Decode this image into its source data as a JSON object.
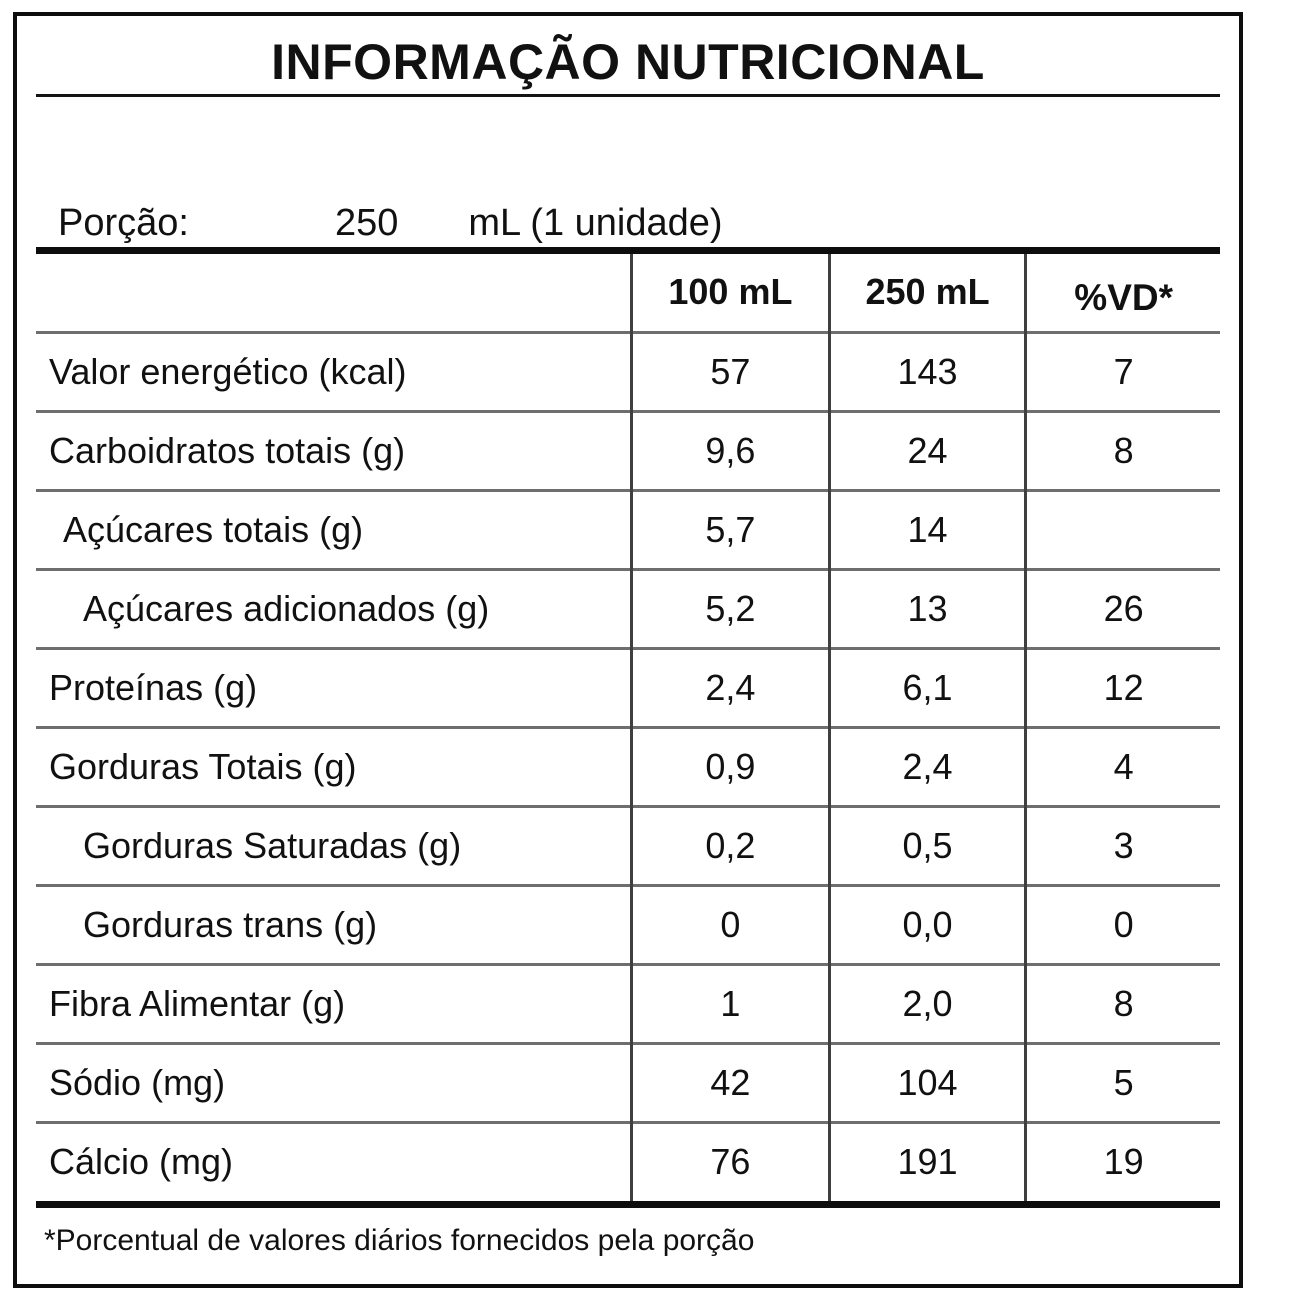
{
  "label": {
    "title": "INFORMAÇÃO NUTRICIONAL",
    "serving": {
      "label": "Porção:",
      "amount": "250",
      "unit": "mL (1 unidade)"
    },
    "columns": [
      "100 mL",
      "250 mL",
      "%VD*"
    ],
    "rows": [
      {
        "name": "Valor energético (kcal)",
        "indent": 0,
        "v100": "57",
        "v250": "143",
        "vd": "7"
      },
      {
        "name": "Carboidratos totais (g)",
        "indent": 0,
        "v100": "9,6",
        "v250": "24",
        "vd": "8"
      },
      {
        "name": "Açúcares totais (g)",
        "indent": 1,
        "v100": "5,7",
        "v250": "14",
        "vd": ""
      },
      {
        "name": "Açúcares adicionados (g)",
        "indent": 2,
        "v100": "5,2",
        "v250": "13",
        "vd": "26"
      },
      {
        "name": "Proteínas (g)",
        "indent": 0,
        "v100": "2,4",
        "v250": "6,1",
        "vd": "12"
      },
      {
        "name": "Gorduras Totais (g)",
        "indent": 0,
        "v100": "0,9",
        "v250": "2,4",
        "vd": "4"
      },
      {
        "name": "Gorduras Saturadas (g)",
        "indent": 2,
        "v100": "0,2",
        "v250": "0,5",
        "vd": "3"
      },
      {
        "name": "Gorduras trans (g)",
        "indent": 2,
        "v100": "0",
        "v250": "0,0",
        "vd": "0"
      },
      {
        "name": "Fibra Alimentar (g)",
        "indent": 0,
        "v100": "1",
        "v250": "2,0",
        "vd": "8"
      },
      {
        "name": "Sódio (mg)",
        "indent": 0,
        "v100": "42",
        "v250": "104",
        "vd": "5"
      },
      {
        "name": "Cálcio (mg)",
        "indent": 0,
        "v100": "76",
        "v250": "191",
        "vd": "19"
      }
    ],
    "footnote": "*Porcentual de valores diários fornecidos pela porção"
  }
}
